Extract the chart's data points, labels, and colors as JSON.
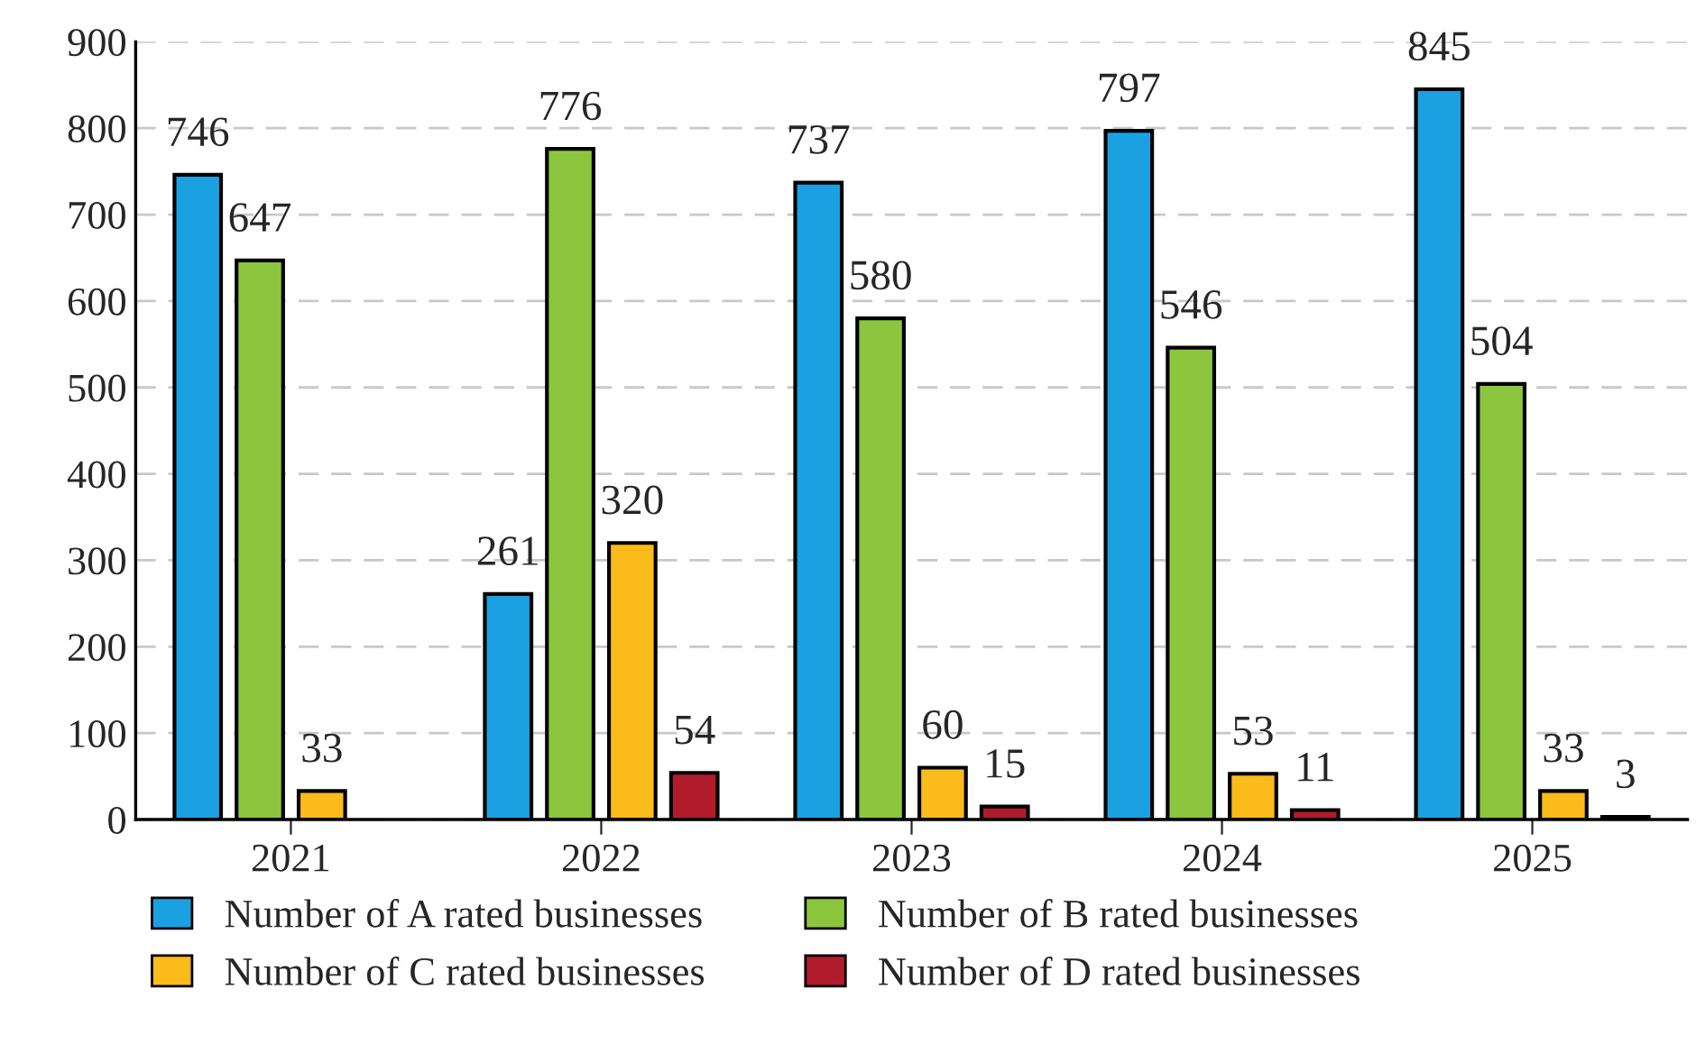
{
  "chart_data": {
    "type": "bar",
    "categories": [
      "2021",
      "2022",
      "2023",
      "2024",
      "2025"
    ],
    "series": [
      {
        "name": "Number of A rated businesses",
        "color": "#1ba1e2",
        "values": [
          746,
          261,
          737,
          797,
          845
        ]
      },
      {
        "name": "Number of B rated businesses",
        "color": "#8cc63f",
        "values": [
          647,
          776,
          580,
          546,
          504
        ]
      },
      {
        "name": "Number of C rated businesses",
        "color": "#fbbc1b",
        "values": [
          33,
          320,
          60,
          53,
          33
        ]
      },
      {
        "name": "Number of D rated businesses",
        "color": "#b01c2c",
        "values": [
          null,
          54,
          15,
          11,
          3
        ]
      }
    ],
    "ylim": [
      0,
      900
    ],
    "yticks": [
      0,
      100,
      200,
      300,
      400,
      500,
      600,
      700,
      800,
      900
    ],
    "grid": "y",
    "legend": "bottom",
    "data_labels": true
  }
}
